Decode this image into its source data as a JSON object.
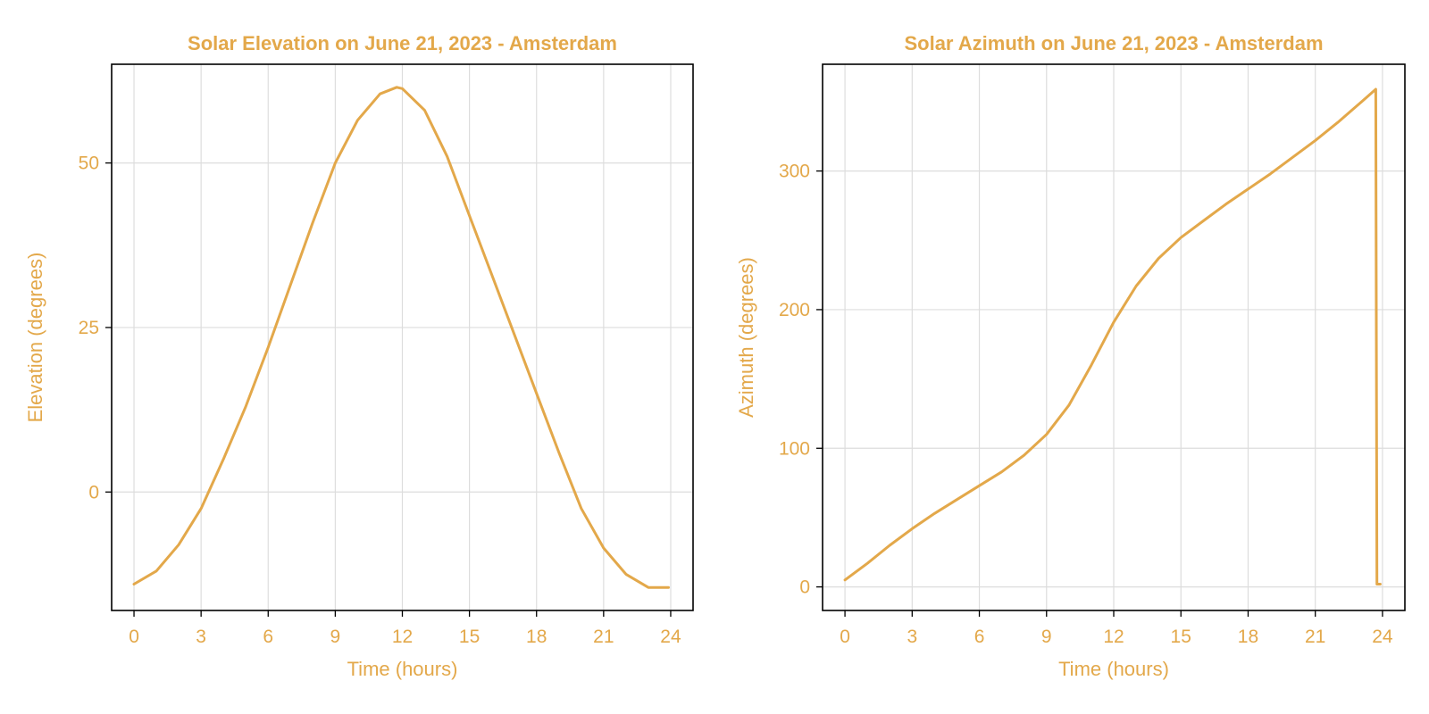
{
  "colors": {
    "accent": "#E3A84A",
    "grid": "#DDDDDD",
    "frame": "#000000"
  },
  "chart_data": [
    {
      "type": "line",
      "title": "Solar Elevation on June 21, 2023 - Amsterdam",
      "xlabel": "Time (hours)",
      "ylabel": "Elevation (degrees)",
      "xlim": [
        -1,
        25
      ],
      "ylim": [
        -18,
        65
      ],
      "xticks": [
        0,
        3,
        6,
        9,
        12,
        15,
        18,
        21,
        24
      ],
      "yticks": [
        0,
        25,
        50
      ],
      "series": [
        {
          "name": "Elevation",
          "x": [
            0,
            1,
            2,
            3,
            4,
            5,
            6,
            7,
            8,
            9,
            10,
            11,
            11.75,
            12,
            13,
            14,
            15,
            16,
            17,
            18,
            19,
            20,
            21,
            22,
            23,
            23.9
          ],
          "y": [
            -14,
            -12,
            -8,
            -2.5,
            5,
            13,
            22,
            31.5,
            41,
            50,
            56.5,
            60.5,
            61.5,
            61.3,
            58,
            51,
            42,
            33,
            24,
            15,
            6,
            -2.5,
            -8.5,
            -12.5,
            -14.5,
            -14.5
          ]
        }
      ]
    },
    {
      "type": "line",
      "title": "Solar Azimuth on June 21, 2023 - Amsterdam",
      "xlabel": "Time (hours)",
      "ylabel": "Azimuth (degrees)",
      "xlim": [
        -1,
        25
      ],
      "ylim": [
        -17,
        377
      ],
      "xticks": [
        0,
        3,
        6,
        9,
        12,
        15,
        18,
        21,
        24
      ],
      "yticks": [
        0,
        100,
        200,
        300
      ],
      "series": [
        {
          "name": "Azimuth",
          "x": [
            0,
            1,
            2,
            3,
            4,
            5,
            6,
            7,
            8,
            9,
            10,
            11,
            12,
            13,
            14,
            15,
            16,
            17,
            18,
            19,
            20,
            21,
            22,
            23,
            23.7,
            23.75,
            23.9
          ],
          "y": [
            5,
            17,
            30,
            42,
            53,
            63,
            73,
            83,
            95,
            110,
            131,
            160,
            191,
            217,
            237,
            252,
            264,
            276,
            287,
            298,
            310,
            322,
            335,
            349,
            359,
            2,
            2
          ]
        }
      ]
    }
  ]
}
